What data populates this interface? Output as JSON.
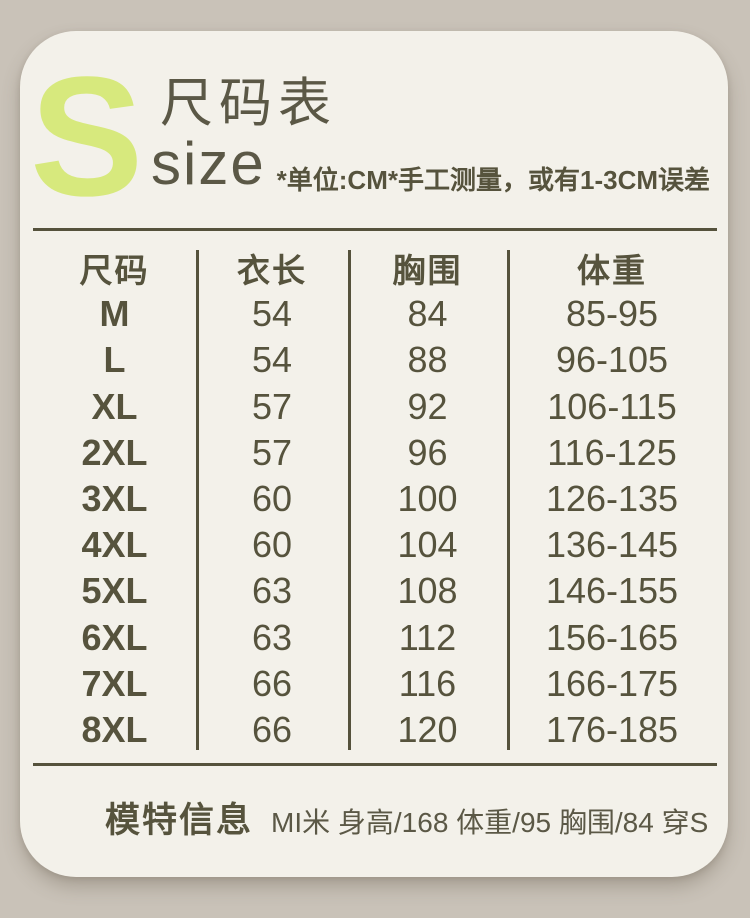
{
  "page": {
    "outer_background": "#c9c2b8",
    "card_background": "#f3f1ea",
    "accent_color": "#d7e97d",
    "text_color": "#56533d"
  },
  "header": {
    "badge_letter": "S",
    "title": "尺码表",
    "subtitle": "size",
    "note": "*单位:CM*手工测量，或有1-3CM误差"
  },
  "chart_data": {
    "type": "table",
    "title": "尺码表",
    "units": "CM",
    "columns": [
      "尺码",
      "衣长",
      "胸围",
      "体重"
    ],
    "rows": [
      [
        "M",
        "54",
        "84",
        "85-95"
      ],
      [
        "L",
        "54",
        "88",
        "96-105"
      ],
      [
        "XL",
        "57",
        "92",
        "106-115"
      ],
      [
        "2XL",
        "57",
        "96",
        "116-125"
      ],
      [
        "3XL",
        "60",
        "100",
        "126-135"
      ],
      [
        "4XL",
        "60",
        "104",
        "136-145"
      ],
      [
        "5XL",
        "63",
        "108",
        "146-155"
      ],
      [
        "6XL",
        "63",
        "112",
        "156-165"
      ],
      [
        "7XL",
        "66",
        "116",
        "166-175"
      ],
      [
        "8XL",
        "66",
        "120",
        "176-185"
      ]
    ]
  },
  "footer": {
    "label": "模特信息",
    "details": "MI米 身高/168 体重/95 胸围/84 穿S"
  }
}
